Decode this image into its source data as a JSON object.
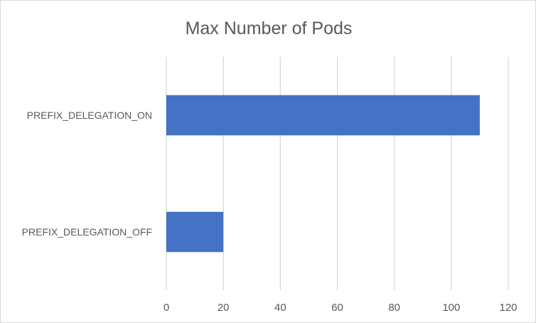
{
  "chart_data": {
    "type": "bar",
    "orientation": "horizontal",
    "title": "Max Number of Pods",
    "categories": [
      "PREFIX_DELEGATION_ON",
      "PREFIX_DELEGATION_OFF"
    ],
    "values": [
      110,
      20
    ],
    "x_ticks": [
      "0",
      "20",
      "40",
      "60",
      "80",
      "100",
      "120"
    ],
    "xlim": [
      0,
      120
    ],
    "grid": true,
    "legend": "none",
    "bar_color": "#4472c4"
  }
}
